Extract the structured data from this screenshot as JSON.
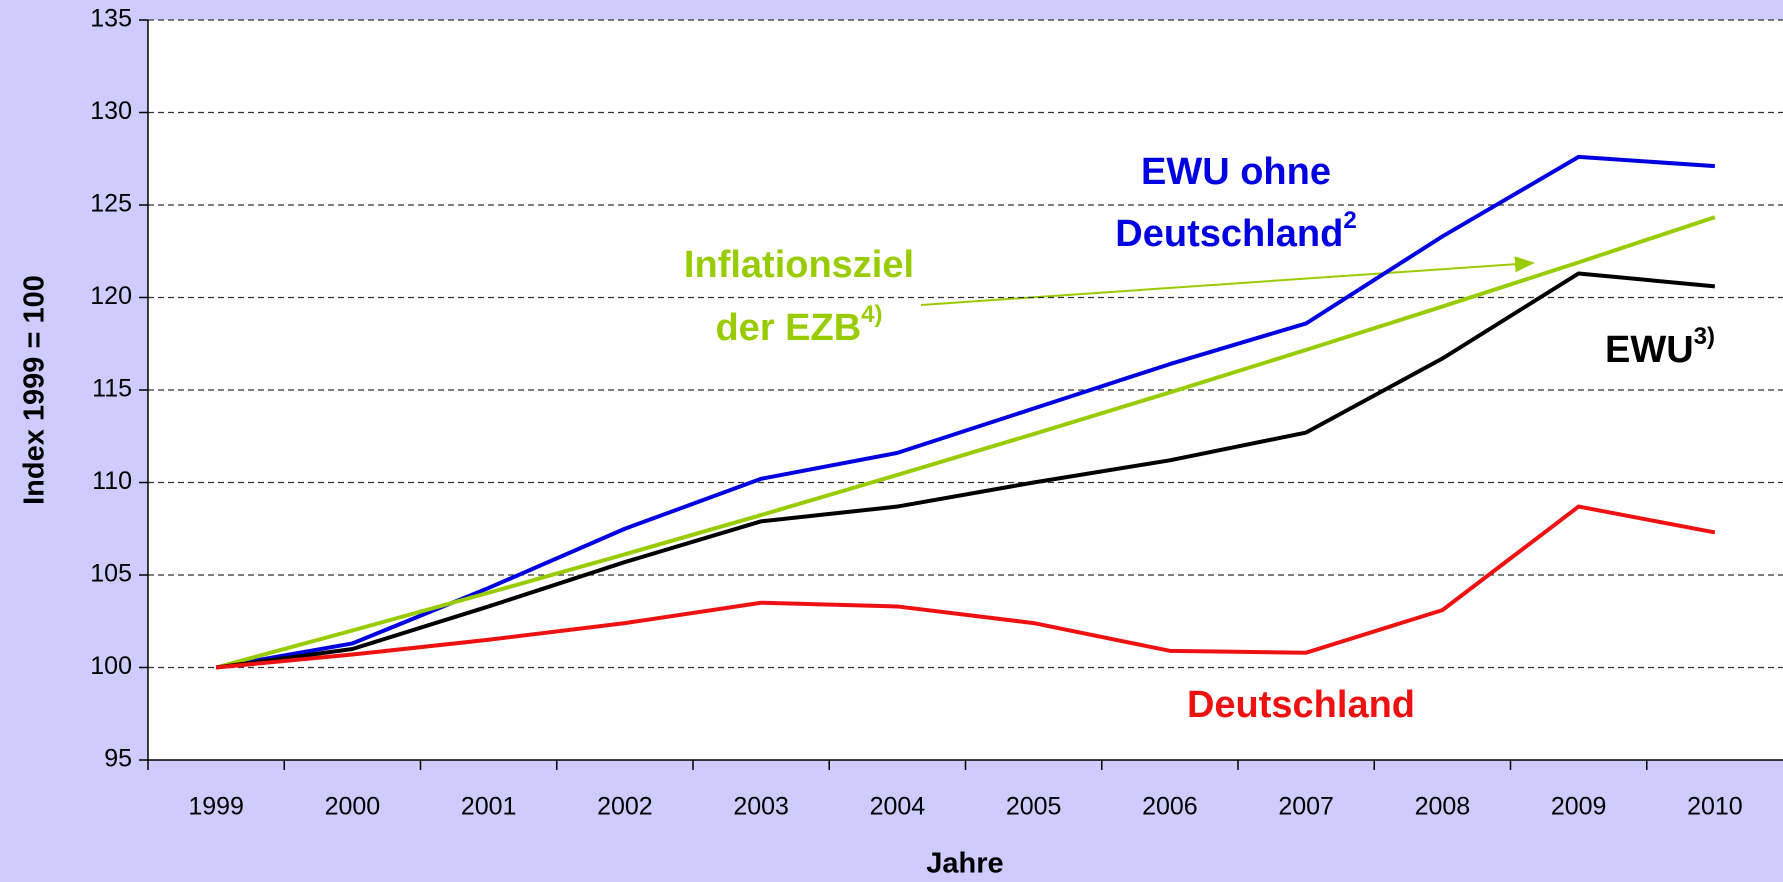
{
  "chart_data": {
    "type": "line",
    "y_label": "Index 1999 = 100",
    "x_label": "Jahre",
    "categories": [
      "1999",
      "2000",
      "2001",
      "2002",
      "2003",
      "2004",
      "2005",
      "2006",
      "2007",
      "2008",
      "2009",
      "2010"
    ],
    "ylim": [
      95,
      135
    ],
    "yticks": [
      95,
      100,
      105,
      110,
      115,
      120,
      125,
      130,
      135
    ],
    "grid": true,
    "series": [
      {
        "label": [
          "EWU ohne",
          "Deutschland"
        ],
        "sup": "2",
        "color": "#0000e0",
        "values": [
          100,
          101.3,
          104.3,
          107.5,
          110.2,
          111.6,
          114,
          116.4,
          118.6,
          123.3,
          127.6,
          127.1
        ]
      },
      {
        "label": [
          "Inflationsziel",
          "der EZB"
        ],
        "sup": "4)",
        "color": "#99cc00",
        "values": [
          100,
          102,
          104.04,
          106.12,
          108.24,
          110.41,
          112.62,
          114.87,
          117.17,
          119.51,
          121.9,
          124.34
        ]
      },
      {
        "label": [
          "EWU"
        ],
        "sup": "3)",
        "color": "#000000",
        "values": [
          100,
          101,
          103.3,
          105.7,
          107.9,
          108.7,
          110,
          111.2,
          112.7,
          116.7,
          121.3,
          120.6
        ]
      },
      {
        "label": [
          "Deutschland"
        ],
        "color": "#ee1111",
        "values": [
          100,
          100.7,
          101.5,
          102.4,
          103.5,
          103.3,
          102.4,
          100.9,
          100.8,
          103.1,
          108.7,
          107.3
        ]
      }
    ]
  }
}
